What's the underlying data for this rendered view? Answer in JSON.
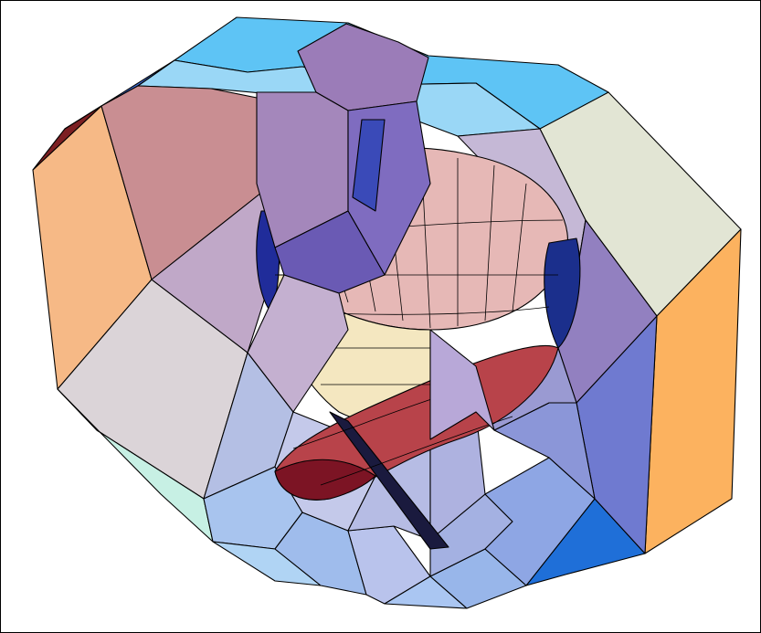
{
  "figure": {
    "frame_color": "#000000",
    "palette": {
      "orange": "#f6b986",
      "bright_orange": "#fcb25f",
      "sky": "#5ec4f5",
      "pale_sky": "#9ad7f6",
      "mauve": "#c08a9a",
      "lavender": "#a892c2",
      "periwinkle": "#aab6e6",
      "pale_green": "#e2e5d4",
      "royal_blue": "#2446c4",
      "deep_red": "#8a1a28",
      "cream": "#fbf3c8"
    }
  }
}
